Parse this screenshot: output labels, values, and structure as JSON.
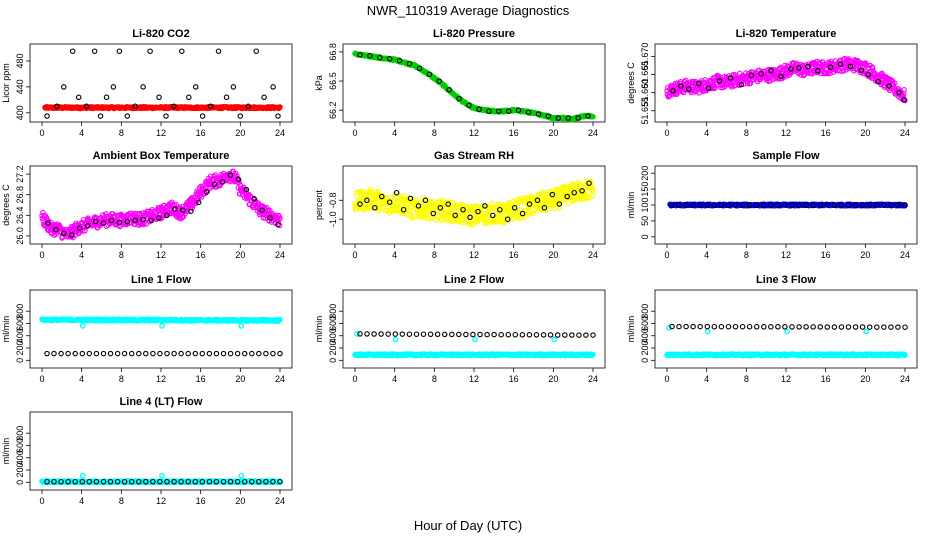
{
  "figure": {
    "title": "NWR_110319  Average Diagnostics",
    "xlabel": "Hour of Day (UTC)"
  },
  "chart_data": [
    {
      "type": "scatter",
      "title": "Li-820 CO2",
      "ylabel": "Licor ppm",
      "xlim": [
        0,
        24
      ],
      "xticks": [
        "0",
        "4",
        "8",
        "12",
        "16",
        "20",
        "24"
      ],
      "ylim": [
        392,
        500
      ],
      "yticks": [
        "400",
        "440",
        "480"
      ],
      "series": [
        {
          "color": "#ff0000",
          "style": "dense-band",
          "x": [
            0.3,
            24
          ],
          "values": [
            408,
            408
          ]
        },
        {
          "color": "#000000",
          "style": "points",
          "x": [
            0.5,
            1.5,
            2.2,
            3.1,
            3.7,
            4.5,
            5.3,
            5.9,
            6.5,
            7.2,
            7.8,
            8.6,
            9.4,
            10.2,
            10.9,
            11.8,
            12.5,
            13.3,
            14.1,
            14.8,
            15.5,
            16.2,
            17.0,
            17.8,
            18.6,
            19.3,
            20.0,
            20.8,
            21.6,
            22.4,
            23.3,
            23.8
          ],
          "values": [
            395,
            410,
            440,
            495,
            424,
            410,
            495,
            395,
            424,
            440,
            495,
            395,
            410,
            440,
            495,
            424,
            395,
            410,
            495,
            424,
            440,
            395,
            410,
            495,
            424,
            440,
            395,
            410,
            495,
            424,
            440,
            395
          ]
        }
      ]
    },
    {
      "type": "scatter",
      "title": "Li-820 Pressure",
      "ylabel": "kPa",
      "xlim": [
        0,
        24
      ],
      "xticks": [
        "0",
        "4",
        "8",
        "12",
        "16",
        "20",
        "24"
      ],
      "ylim": [
        66.12,
        66.84
      ],
      "yticks": [
        "66.2",
        "66.5",
        "66.8"
      ],
      "series": [
        {
          "color": "#00cc00",
          "style": "dense-line",
          "x": [
            0,
            1,
            2,
            3,
            4,
            5,
            6,
            7,
            8,
            9,
            10,
            11,
            12,
            13,
            14,
            15,
            16,
            17,
            18,
            19,
            20,
            21,
            22,
            23,
            24
          ],
          "values": [
            66.78,
            66.76,
            66.75,
            66.73,
            66.72,
            66.69,
            66.66,
            66.6,
            66.53,
            66.45,
            66.36,
            66.28,
            66.22,
            66.2,
            66.19,
            66.19,
            66.2,
            66.19,
            66.17,
            66.15,
            66.12,
            66.12,
            66.11,
            66.14,
            66.14
          ]
        },
        {
          "color": "#000000",
          "style": "points",
          "x": [
            0.5,
            1.5,
            2.5,
            3.5,
            4.5,
            5.5,
            6.5,
            7.5,
            8.5,
            9.5,
            10.5,
            11.5,
            12.5,
            13.5,
            14.5,
            15.5,
            16.5,
            17.5,
            18.5,
            19.5,
            20.5,
            21.5,
            22.5,
            23.5
          ],
          "values": [
            66.77,
            66.76,
            66.74,
            66.73,
            66.71,
            66.68,
            66.63,
            66.57,
            66.5,
            66.41,
            66.32,
            66.25,
            66.21,
            66.19,
            66.19,
            66.19,
            66.2,
            66.18,
            66.16,
            66.14,
            66.12,
            66.12,
            66.12,
            66.14
          ]
        }
      ]
    },
    {
      "type": "scatter",
      "title": "Li-820 Temperature",
      "ylabel": "degrees C",
      "xlim": [
        0,
        24
      ],
      "xticks": [
        "0",
        "4",
        "8",
        "12",
        "16",
        "20",
        "24"
      ],
      "ylim": [
        51.653,
        51.6723
      ],
      "yticks": [
        "51.655",
        "51.660",
        "51.665",
        "51.670"
      ],
      "series": [
        {
          "color": "#ff00ff",
          "style": "noisy-line",
          "x": [
            0,
            1,
            2,
            3,
            4,
            5,
            6,
            7,
            8,
            9,
            10,
            11,
            12,
            13,
            14,
            15,
            16,
            17,
            18,
            19,
            20,
            21,
            22,
            23,
            24
          ],
          "values": [
            51.6605,
            51.6612,
            51.6618,
            51.6614,
            51.6622,
            51.663,
            51.6628,
            51.6635,
            51.664,
            51.6645,
            51.6648,
            51.665,
            51.666,
            51.6668,
            51.666,
            51.667,
            51.6668,
            51.6673,
            51.6678,
            51.6676,
            51.6668,
            51.665,
            51.663,
            51.661,
            51.659
          ]
        },
        {
          "color": "#000000",
          "style": "points",
          "x": [
            0.6,
            1.4,
            2.2,
            3.2,
            4.2,
            5.3,
            6.4,
            7.5,
            8.5,
            9.5,
            10.5,
            11.5,
            12.5,
            13.3,
            14.2,
            15.2,
            16.5,
            17.5,
            18.5,
            19.6,
            20.3,
            21.3,
            22.4,
            23.4,
            23.9
          ],
          "values": [
            51.6605,
            51.6618,
            51.661,
            51.6625,
            51.6612,
            51.6632,
            51.664,
            51.6622,
            51.6648,
            51.6652,
            51.666,
            51.6645,
            51.6665,
            51.6668,
            51.6672,
            51.666,
            51.667,
            51.6678,
            51.6672,
            51.6662,
            51.665,
            51.663,
            51.6618,
            51.66,
            51.658
          ]
        }
      ]
    },
    {
      "type": "scatter",
      "title": "Ambient Box Temperature",
      "ylabel": "degrees C",
      "xlim": [
        0,
        24
      ],
      "xticks": [
        "0",
        "4",
        "8",
        "12",
        "16",
        "20",
        "24"
      ],
      "ylim": [
        25.92,
        27.28
      ],
      "yticks": [
        "26.0",
        "26.4",
        "26.8",
        "27.2"
      ],
      "series": [
        {
          "color": "#ff00ff",
          "style": "noisy-line",
          "x": [
            0,
            0.5,
            1,
            1.5,
            2,
            2.5,
            3,
            3.5,
            4,
            5,
            6,
            7,
            8,
            9,
            10,
            11,
            12,
            13,
            14,
            15,
            16,
            17,
            18,
            18.7,
            19.5,
            20,
            21,
            22,
            23,
            24
          ],
          "values": [
            26.35,
            26.25,
            26.12,
            26.15,
            26.08,
            26.02,
            26.06,
            26.15,
            26.18,
            26.25,
            26.3,
            26.32,
            26.3,
            26.35,
            26.32,
            26.38,
            26.45,
            26.55,
            26.45,
            26.6,
            26.85,
            27.05,
            27.08,
            27.2,
            27.12,
            26.9,
            26.7,
            26.5,
            26.4,
            26.3
          ]
        },
        {
          "color": "#000000",
          "style": "points",
          "x": [
            0.6,
            1.4,
            2.2,
            3.0,
            3.8,
            4.6,
            5.4,
            6.2,
            7.0,
            7.8,
            8.6,
            9.4,
            10.2,
            11.0,
            11.8,
            12.6,
            13.4,
            14.2,
            15.0,
            15.8,
            16.6,
            17.4,
            18.2,
            19.0,
            19.8,
            20.6,
            21.4,
            22.2,
            23.0,
            23.8
          ],
          "values": [
            26.25,
            26.12,
            26.05,
            26.02,
            26.15,
            26.2,
            26.28,
            26.25,
            26.3,
            26.26,
            26.28,
            26.3,
            26.32,
            26.3,
            26.35,
            26.4,
            26.52,
            26.5,
            26.48,
            26.65,
            26.85,
            27.0,
            27.05,
            27.18,
            27.1,
            26.9,
            26.72,
            26.5,
            26.35,
            26.22
          ]
        }
      ]
    },
    {
      "type": "scatter",
      "title": "Gas Stream RH",
      "ylabel": "percent",
      "xlim": [
        0,
        24
      ],
      "xticks": [
        "0",
        "4",
        "8",
        "12",
        "16",
        "20",
        "24"
      ],
      "ylim": [
        -1.22,
        -0.48
      ],
      "yticks": [
        "-0.8",
        "-1.0"
      ],
      "series": [
        {
          "color": "#ffff00",
          "style": "noisy-band",
          "x": [
            0,
            1,
            2,
            3,
            4,
            5,
            6,
            7,
            8,
            9,
            10,
            11,
            12,
            13,
            14,
            15,
            16,
            17,
            18,
            19,
            20,
            21,
            22,
            23,
            24
          ],
          "values": [
            -0.82,
            -0.8,
            -0.78,
            -0.85,
            -0.82,
            -0.85,
            -0.9,
            -0.88,
            -0.92,
            -0.9,
            -0.93,
            -0.95,
            -0.96,
            -0.95,
            -0.93,
            -0.95,
            -0.9,
            -0.88,
            -0.85,
            -0.82,
            -0.8,
            -0.76,
            -0.72,
            -0.7,
            -0.68
          ]
        },
        {
          "color": "#000000",
          "style": "points",
          "x": [
            0.5,
            1.2,
            2.0,
            2.7,
            3.5,
            4.2,
            4.9,
            5.6,
            6.4,
            7.1,
            7.9,
            8.6,
            9.4,
            10.1,
            10.9,
            11.6,
            12.4,
            13.1,
            13.9,
            14.6,
            15.4,
            16.1,
            16.9,
            17.6,
            18.4,
            19.1,
            19.9,
            20.6,
            21.4,
            22.1,
            22.9,
            23.6
          ],
          "values": [
            -0.84,
            -0.8,
            -0.88,
            -0.76,
            -0.82,
            -0.72,
            -0.9,
            -0.78,
            -0.86,
            -0.8,
            -0.94,
            -0.88,
            -0.84,
            -0.96,
            -0.9,
            -0.98,
            -0.92,
            -0.86,
            -0.96,
            -0.9,
            -1.0,
            -0.88,
            -0.94,
            -0.84,
            -0.8,
            -0.88,
            -0.74,
            -0.84,
            -0.76,
            -0.72,
            -0.7,
            -0.62
          ]
        }
      ]
    },
    {
      "type": "scatter",
      "title": "Sample Flow",
      "ylabel": "ml/min",
      "xlim": [
        0,
        24
      ],
      "xticks": [
        "0",
        "4",
        "8",
        "12",
        "16",
        "20",
        "24"
      ],
      "ylim": [
        -10,
        210
      ],
      "yticks": [
        "0",
        "50",
        "100",
        "150",
        "200"
      ],
      "series": [
        {
          "color": "#0000ff",
          "style": "dense-band",
          "x": [
            0.3,
            24
          ],
          "values": [
            100,
            100
          ]
        },
        {
          "color": "#000000",
          "style": "points",
          "x": [
            0.5,
            24
          ],
          "values": [
            100,
            100
          ],
          "n": 34
        }
      ]
    },
    {
      "type": "scatter",
      "title": "Line 1 Flow",
      "ylabel": "ml/min",
      "xlim": [
        0,
        24
      ],
      "xticks": [
        "0",
        "4",
        "8",
        "12",
        "16",
        "20",
        "24"
      ],
      "ylim": [
        -60,
        1080
      ],
      "yticks": [
        "0",
        "200",
        "400",
        "600",
        "800"
      ],
      "series": [
        {
          "color": "#00ffff",
          "style": "dense-band",
          "x": [
            0,
            24
          ],
          "values": [
            660,
            650
          ]
        },
        {
          "color": "#00ffff",
          "style": "outliers",
          "x": [
            4.1,
            12.1,
            20.1
          ],
          "values": [
            560,
            560,
            560
          ]
        },
        {
          "color": "#000000",
          "style": "points",
          "x": [
            0.5,
            24
          ],
          "values": [
            110,
            110
          ],
          "n": 34
        }
      ]
    },
    {
      "type": "scatter",
      "title": "Line 2 Flow",
      "ylabel": "ml/min",
      "xlim": [
        0,
        24
      ],
      "xticks": [
        "0",
        "4",
        "8",
        "12",
        "16",
        "20",
        "24"
      ],
      "ylim": [
        -60,
        1080
      ],
      "yticks": [
        "0",
        "200",
        "400",
        "600",
        "800"
      ],
      "series": [
        {
          "color": "#00ffff",
          "style": "dense-band",
          "x": [
            0,
            24
          ],
          "values": [
            90,
            90
          ]
        },
        {
          "color": "#00ffff",
          "style": "outliers",
          "x": [
            0.2,
            4.1,
            12.1,
            20.1
          ],
          "values": [
            430,
            340,
            340,
            340
          ]
        },
        {
          "color": "#000000",
          "style": "points",
          "x": [
            0.5,
            24
          ],
          "values": [
            430,
            410
          ],
          "n": 34
        }
      ]
    },
    {
      "type": "scatter",
      "title": "Line 3 Flow",
      "ylabel": "ml/min",
      "xlim": [
        0,
        24
      ],
      "xticks": [
        "0",
        "4",
        "8",
        "12",
        "16",
        "20",
        "24"
      ],
      "ylim": [
        -60,
        1080
      ],
      "yticks": [
        "0",
        "200",
        "400",
        "600",
        "800"
      ],
      "series": [
        {
          "color": "#00ffff",
          "style": "dense-band",
          "x": [
            0,
            24
          ],
          "values": [
            90,
            90
          ]
        },
        {
          "color": "#00ffff",
          "style": "outliers",
          "x": [
            0.2,
            4.1,
            12.1,
            20.1
          ],
          "values": [
            530,
            470,
            470,
            470
          ]
        },
        {
          "color": "#000000",
          "style": "points",
          "x": [
            0.5,
            24
          ],
          "values": [
            550,
            540
          ],
          "n": 34
        }
      ]
    },
    {
      "type": "scatter",
      "title": "Line 4 (LT) Flow",
      "ylabel": "ml/min",
      "xlim": [
        0,
        24
      ],
      "xticks": [
        "0",
        "4",
        "8",
        "12",
        "16",
        "20",
        "24"
      ],
      "ylim": [
        -60,
        1080
      ],
      "yticks": [
        "0",
        "200",
        "400",
        "600",
        "800"
      ],
      "series": [
        {
          "color": "#00ffff",
          "style": "dense-band",
          "x": [
            0,
            24
          ],
          "values": [
            10,
            10
          ]
        },
        {
          "color": "#00ffff",
          "style": "outliers",
          "x": [
            0.2,
            4.1,
            12.1,
            20.1
          ],
          "values": [
            10,
            110,
            110,
            110
          ]
        },
        {
          "color": "#000000",
          "style": "points",
          "x": [
            0.5,
            24
          ],
          "values": [
            10,
            10
          ],
          "n": 34
        }
      ]
    }
  ]
}
